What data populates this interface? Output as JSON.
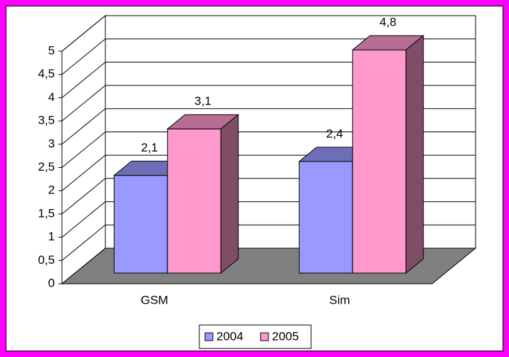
{
  "chart_data": {
    "type": "bar3d",
    "categories": [
      "GSM",
      "Sim"
    ],
    "series": [
      {
        "name": "2004",
        "color": "#9999ff",
        "values": [
          2.1,
          2.4
        ],
        "value_labels": [
          "2,1",
          "2,4"
        ]
      },
      {
        "name": "2005",
        "color": "#ff99cc",
        "values": [
          3.1,
          4.8
        ],
        "value_labels": [
          "3,1",
          "4,8"
        ]
      }
    ],
    "ylim": [
      0,
      5
    ],
    "yticks": [
      0,
      {
        "value": 0.5,
        "label": "0,5"
      },
      1,
      {
        "value": 1.5,
        "label": "1,5"
      },
      2,
      {
        "value": 2.5,
        "label": "2,5"
      },
      3,
      {
        "value": 3.5,
        "label": "3,5"
      },
      4,
      {
        "value": 4.5,
        "label": "4,5"
      },
      5
    ],
    "grid": true,
    "legend": "bottom"
  }
}
